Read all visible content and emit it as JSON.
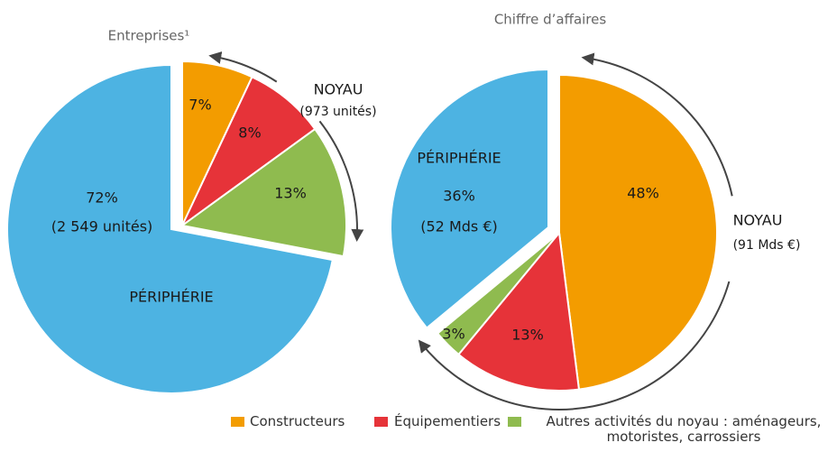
{
  "chart_data": [
    {
      "type": "pie",
      "title": "Entreprises¹",
      "values": [
        7,
        8,
        13,
        72
      ],
      "value_labels": [
        "7%",
        "8%",
        "13%",
        "72%"
      ],
      "colors": [
        "#f39c00",
        "#e63339",
        "#8fbb4f",
        "#4db3e2"
      ],
      "annotations": [
        "NOYAU",
        "(973 unités)",
        "(2 549 unités)",
        "PÉRIPHÉRIE"
      ]
    },
    {
      "type": "pie",
      "title": "Chiffre d’affaires",
      "values": [
        48,
        13,
        3,
        36
      ],
      "value_labels": [
        "48%",
        "13%",
        "3%",
        "36%"
      ],
      "colors": [
        "#f39c00",
        "#e63339",
        "#8fbb4f",
        "#4db3e2"
      ],
      "annotations": [
        "PÉRIPHÉRIE",
        "(52 Mds €)",
        "NOYAU",
        "(91 Mds €)"
      ]
    }
  ],
  "legend": [
    {
      "name": "Constructeurs",
      "color": "#f39c00"
    },
    {
      "name": "Équipementiers",
      "color": "#e63339"
    },
    {
      "name": "Autres activités du noyau : aménageurs, motoristes, carrossiers",
      "color": "#8fbb4f"
    }
  ]
}
